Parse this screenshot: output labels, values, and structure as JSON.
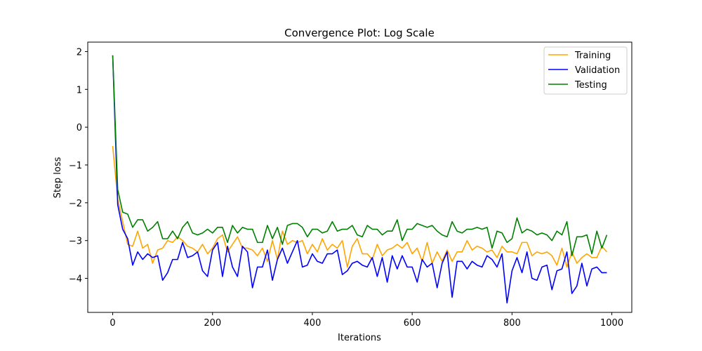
{
  "chart_data": {
    "type": "line",
    "title": "Convergence Plot: Log Scale",
    "xlabel": "Iterations",
    "ylabel": "Step loss",
    "xlim": [
      -50,
      1040
    ],
    "ylim": [
      -4.9,
      2.25
    ],
    "xticks": [
      0,
      200,
      400,
      600,
      800,
      1000
    ],
    "yticks": [
      2,
      1,
      0,
      -1,
      -2,
      -3,
      -4
    ],
    "ytick_labels": [
      "2",
      "1",
      "0",
      "−1",
      "−2",
      "−3",
      "−4"
    ],
    "grid": false,
    "legend_position": "top-right",
    "x": [
      0,
      10,
      20,
      30,
      40,
      50,
      60,
      70,
      80,
      90,
      100,
      110,
      120,
      130,
      140,
      150,
      160,
      170,
      180,
      190,
      200,
      210,
      220,
      230,
      240,
      250,
      260,
      270,
      280,
      290,
      300,
      310,
      320,
      330,
      340,
      350,
      360,
      370,
      380,
      390,
      400,
      410,
      420,
      430,
      440,
      450,
      460,
      470,
      480,
      490,
      500,
      510,
      520,
      530,
      540,
      550,
      560,
      570,
      580,
      590,
      600,
      610,
      620,
      630,
      640,
      650,
      660,
      670,
      680,
      690,
      700,
      710,
      720,
      730,
      740,
      750,
      760,
      770,
      780,
      790,
      800,
      810,
      820,
      830,
      840,
      850,
      860,
      870,
      880,
      890,
      900,
      910,
      920,
      930,
      940,
      950,
      960,
      970,
      980,
      990
    ],
    "series": [
      {
        "name": "Training",
        "color": "#ffa500",
        "values": [
          -0.5,
          -1.9,
          -2.5,
          -3.1,
          -3.15,
          -2.75,
          -3.2,
          -3.1,
          -3.6,
          -3.25,
          -3.2,
          -3.0,
          -3.05,
          -2.9,
          -3.0,
          -3.15,
          -3.2,
          -3.3,
          -3.1,
          -3.35,
          -3.2,
          -2.95,
          -2.85,
          -3.3,
          -3.1,
          -2.9,
          -3.2,
          -3.2,
          -3.25,
          -3.4,
          -3.2,
          -3.55,
          -3.0,
          -3.5,
          -2.75,
          -3.1,
          -3.0,
          -3.05,
          -3.0,
          -3.35,
          -3.1,
          -3.3,
          -2.95,
          -3.25,
          -3.1,
          -3.2,
          -3.0,
          -3.7,
          -3.15,
          -2.95,
          -3.35,
          -3.35,
          -3.5,
          -3.1,
          -3.4,
          -3.25,
          -3.2,
          -3.1,
          -3.2,
          -3.05,
          -3.35,
          -3.2,
          -3.55,
          -3.05,
          -3.6,
          -3.3,
          -3.55,
          -3.25,
          -3.55,
          -3.3,
          -3.3,
          -3.0,
          -3.25,
          -3.15,
          -3.2,
          -3.3,
          -3.25,
          -3.45,
          -3.15,
          -3.3,
          -3.3,
          -3.35,
          -3.05,
          -3.05,
          -3.4,
          -3.3,
          -3.35,
          -3.3,
          -3.4,
          -3.65,
          -3.2,
          -3.7,
          -3.3,
          -3.6,
          -3.45,
          -3.35,
          -3.45,
          -3.45,
          -3.15,
          -3.3
        ]
      },
      {
        "name": "Validation",
        "color": "#0000ff",
        "values": [
          1.9,
          -2.05,
          -2.7,
          -2.95,
          -3.65,
          -3.3,
          -3.5,
          -3.35,
          -3.45,
          -3.4,
          -4.05,
          -3.85,
          -3.5,
          -3.5,
          -3.05,
          -3.45,
          -3.4,
          -3.3,
          -3.8,
          -3.95,
          -3.25,
          -3.05,
          -3.95,
          -3.15,
          -3.7,
          -3.95,
          -3.15,
          -3.3,
          -4.25,
          -3.7,
          -3.7,
          -3.25,
          -4.05,
          -3.5,
          -3.2,
          -3.6,
          -3.3,
          -3.0,
          -3.7,
          -3.65,
          -3.35,
          -3.55,
          -3.6,
          -3.35,
          -3.35,
          -3.25,
          -3.9,
          -3.8,
          -3.6,
          -3.55,
          -3.65,
          -3.7,
          -3.45,
          -3.95,
          -3.45,
          -4.1,
          -3.4,
          -3.75,
          -3.4,
          -3.7,
          -3.7,
          -4.1,
          -3.5,
          -3.7,
          -3.6,
          -4.25,
          -3.6,
          -3.3,
          -4.5,
          -3.55,
          -3.55,
          -3.75,
          -3.55,
          -3.65,
          -3.7,
          -3.4,
          -3.5,
          -3.7,
          -3.35,
          -4.65,
          -3.8,
          -3.45,
          -3.85,
          -3.3,
          -4.0,
          -4.05,
          -3.7,
          -3.65,
          -4.3,
          -3.8,
          -3.75,
          -3.3,
          -4.4,
          -4.2,
          -3.6,
          -4.2,
          -3.75,
          -3.7,
          -3.85,
          -3.85
        ]
      },
      {
        "name": "Testing",
        "color": "#008000",
        "values": [
          1.9,
          -1.65,
          -2.25,
          -2.3,
          -2.65,
          -2.45,
          -2.45,
          -2.75,
          -2.65,
          -2.5,
          -2.95,
          -2.95,
          -2.75,
          -2.95,
          -2.65,
          -2.5,
          -2.8,
          -2.85,
          -2.8,
          -2.7,
          -2.8,
          -2.65,
          -2.65,
          -3.05,
          -2.6,
          -2.8,
          -2.65,
          -2.7,
          -2.7,
          -3.05,
          -3.05,
          -2.6,
          -2.95,
          -2.65,
          -3.1,
          -2.6,
          -2.55,
          -2.55,
          -2.65,
          -2.9,
          -2.7,
          -2.7,
          -2.8,
          -2.75,
          -2.5,
          -2.75,
          -2.7,
          -2.7,
          -2.6,
          -2.85,
          -2.9,
          -2.6,
          -2.7,
          -2.7,
          -2.85,
          -2.75,
          -2.75,
          -2.45,
          -3.0,
          -2.7,
          -2.7,
          -2.55,
          -2.6,
          -2.65,
          -2.6,
          -2.75,
          -2.85,
          -2.9,
          -2.5,
          -2.75,
          -2.8,
          -2.7,
          -2.7,
          -2.65,
          -2.7,
          -2.65,
          -3.2,
          -2.75,
          -2.8,
          -3.05,
          -2.95,
          -2.4,
          -2.8,
          -2.7,
          -2.75,
          -2.85,
          -2.8,
          -2.85,
          -3.0,
          -2.75,
          -2.85,
          -2.5,
          -3.4,
          -2.9,
          -2.9,
          -2.85,
          -3.35,
          -2.75,
          -3.2,
          -2.85
        ]
      }
    ]
  }
}
